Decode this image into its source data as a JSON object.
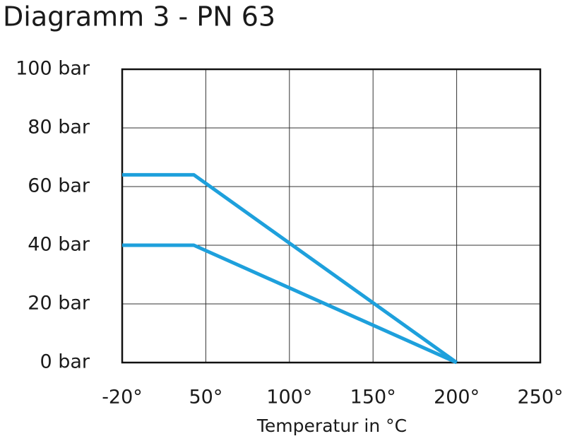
{
  "chart_data": {
    "type": "line",
    "title": "Diagramm 3 - PN 63",
    "x_label": "Temperatur in °C",
    "xlim": [
      -20,
      250
    ],
    "xticks": [
      {
        "value": -20,
        "label": "-20°"
      },
      {
        "value": 50,
        "label": "50°"
      },
      {
        "value": 100,
        "label": "100°"
      },
      {
        "value": 150,
        "label": "150°"
      },
      {
        "value": 200,
        "label": "200°"
      },
      {
        "value": 250,
        "label": "250°"
      }
    ],
    "ylim": [
      0,
      100
    ],
    "yticks": [
      {
        "value": 0,
        "label": "0 bar"
      },
      {
        "value": 20,
        "label": "20 bar"
      },
      {
        "value": 40,
        "label": "40 bar"
      },
      {
        "value": 60,
        "label": "60 bar"
      },
      {
        "value": 80,
        "label": "80 bar"
      },
      {
        "value": 100,
        "label": "100 bar"
      }
    ],
    "grid": true,
    "series": [
      {
        "color": "#1ea0dc",
        "x": [
          -20,
          40,
          200
        ],
        "values": [
          64,
          64,
          0
        ]
      },
      {
        "color": "#1ea0dc",
        "x": [
          -20,
          40,
          200
        ],
        "values": [
          40,
          40,
          0
        ]
      }
    ]
  }
}
